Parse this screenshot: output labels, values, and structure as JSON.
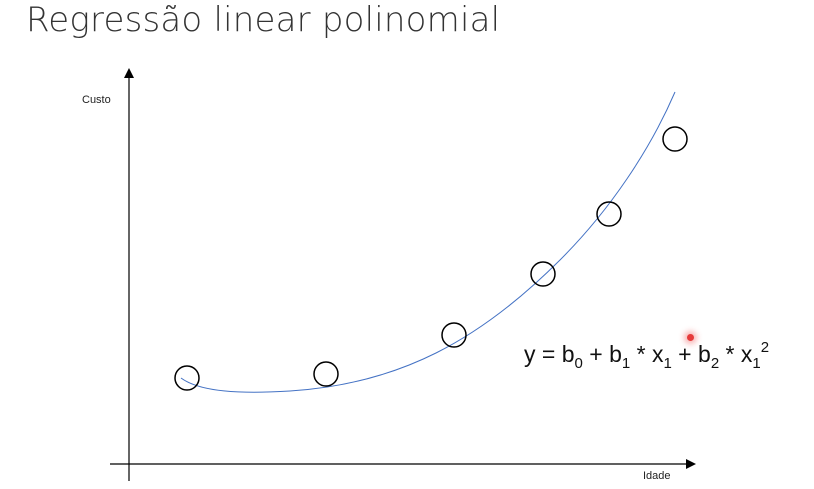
{
  "title": "Regressão linear polinomial",
  "diagram": {
    "y_axis_label": "Custo",
    "x_axis_label": "Idade",
    "equation": {
      "y": "y",
      "eq": " = ",
      "b0": "b",
      "b0_sub": "0",
      "plus1": " + ",
      "b1": "b",
      "b1_sub": "1",
      "times1": " * ",
      "x1": "x",
      "x1_sub": "1",
      "plus2": " + ",
      "b2": "b",
      "b2_sub": "2",
      "times2": " * ",
      "x2": "x",
      "x2_sub": "1",
      "x2_sup": "2"
    },
    "colors": {
      "curve": "#4472c4",
      "axis": "#000000",
      "points": "#000000",
      "pointer": "#e63b3b"
    }
  }
}
